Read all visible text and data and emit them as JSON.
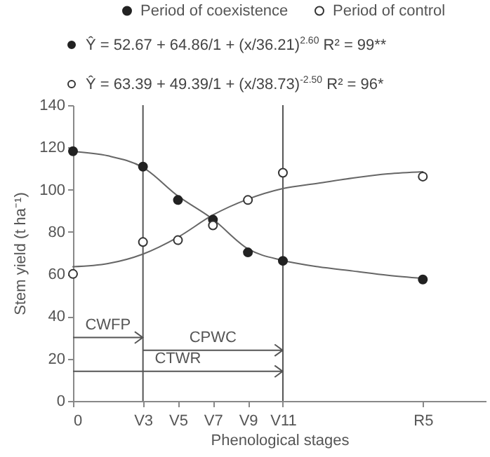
{
  "chart_data": {
    "type": "scatter",
    "xlabel": "Phenological stages",
    "ylabel": "Stem yield (t ha⁻¹)",
    "ylim": [
      0,
      140
    ],
    "categories": [
      "0",
      null,
      "V3",
      "V5",
      "V7",
      "V9",
      "V11",
      null,
      null,
      null,
      "R5"
    ],
    "yticks": [
      0,
      20,
      40,
      60,
      80,
      100,
      120,
      140
    ],
    "grid": false,
    "legend": "top",
    "marker": "circle",
    "annotations": [
      "Ŷ = 52.67 + 64.86/1 + (x/36.21)$^{2.60}$   R² = 99**",
      "Ŷ = 63.39 + 49.39/1 + (x/38.73)$^{-2.50}$   R² = 96*",
      "CWFP",
      "CPWC",
      "CTWR"
    ],
    "ref_lines": [
      {
        "axis": "x",
        "value": "V3"
      },
      {
        "axis": "x",
        "value": "V11"
      }
    ],
    "series": [
      {
        "name": "Period of coexistence",
        "type": "scatter",
        "color": "#222222",
        "values": [
          118.2,
          null,
          110.9,
          95.1,
          85.8,
          70.3,
          66.3,
          null,
          null,
          null,
          57.5
        ]
      },
      {
        "name": "Period of control",
        "type": "scatter",
        "color": "#333333",
        "values": [
          60.1,
          null,
          75.2,
          76.1,
          83.1,
          95.1,
          108,
          null,
          null,
          null,
          106.2
        ]
      },
      {
        "type": "line",
        "color": "#666666",
        "marker": "none",
        "values": [
          118,
          116,
          110.5,
          97,
          86,
          72,
          66.5,
          63.5,
          61.5,
          59.5,
          58
        ]
      },
      {
        "type": "line",
        "color": "#666666",
        "marker": "none",
        "values": [
          63.5,
          65,
          69.5,
          77.5,
          88,
          95.5,
          100.5,
          103,
          105.5,
          107.5,
          108.5
        ]
      }
    ]
  }
}
